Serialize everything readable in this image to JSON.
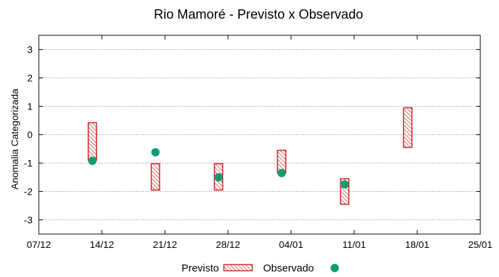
{
  "chart_data": {
    "type": "range-and-scatter",
    "title": "Rio Mamoré - Previsto x Observado",
    "ylabel": "Anomalia Categorizada",
    "xlabel": "",
    "ylim": [
      -3.5,
      3.5
    ],
    "yticks": [
      3,
      2,
      1,
      0,
      -1,
      -2,
      -3
    ],
    "ytick_labels": [
      "3",
      "2",
      "1",
      "0",
      "-1",
      "-2",
      "-3"
    ],
    "xlim": [
      0,
      7
    ],
    "xticks": [
      0,
      1,
      2,
      3,
      4,
      5,
      6,
      7
    ],
    "xtick_labels": [
      "07/12",
      "14/12",
      "21/12",
      "28/12",
      "04/01",
      "11/01",
      "18/01",
      "25/01"
    ],
    "grid": true,
    "legend": {
      "placement": "bottom-center",
      "previsto_label": "Previsto",
      "observado_label": "Observado"
    },
    "colors": {
      "previsto": "#cc2222",
      "observado": "#129c74",
      "grid": "#999999"
    },
    "previsto": [
      {
        "x": 0.85,
        "low": -0.9,
        "high": 0.42
      },
      {
        "x": 1.85,
        "low": -1.95,
        "high": -1.02
      },
      {
        "x": 2.85,
        "low": -1.95,
        "high": -1.02
      },
      {
        "x": 3.85,
        "low": -1.35,
        "high": -0.55
      },
      {
        "x": 4.85,
        "low": -2.45,
        "high": -1.55
      },
      {
        "x": 5.85,
        "low": -0.45,
        "high": 0.95
      }
    ],
    "observado": [
      {
        "x": 0.85,
        "y": -0.92
      },
      {
        "x": 1.85,
        "y": -0.62
      },
      {
        "x": 2.85,
        "y": -1.5
      },
      {
        "x": 3.85,
        "y": -1.35
      },
      {
        "x": 4.85,
        "y": -1.75
      }
    ]
  }
}
